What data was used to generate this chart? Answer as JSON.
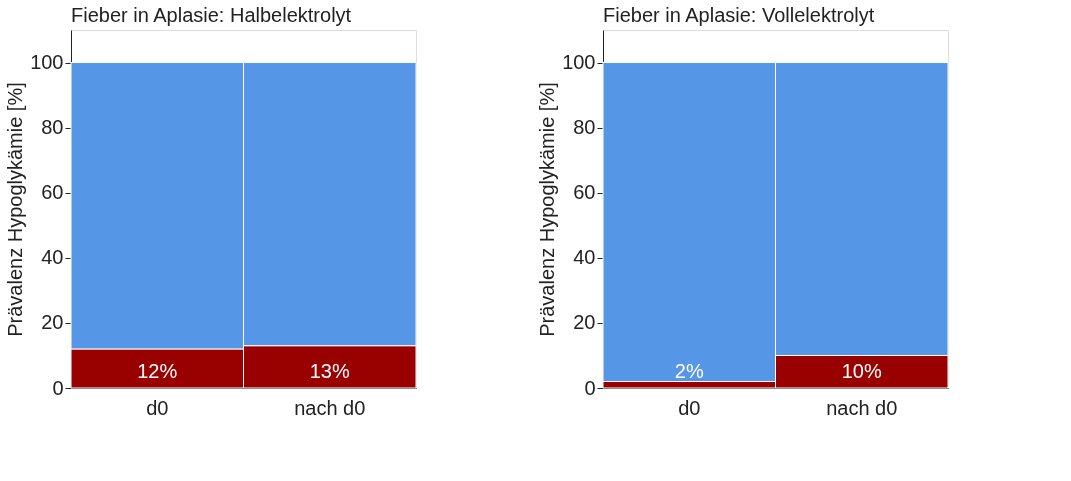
{
  "chart_data": [
    {
      "type": "bar",
      "title": "Fieber in Aplasie: Halbelektrolyt",
      "ylabel": "Prävalenz Hypoglykämie [%]",
      "categories": [
        "d0",
        "nach d0"
      ],
      "stacked": true,
      "ylim": [
        0,
        110
      ],
      "yticks": [
        0,
        20,
        40,
        60,
        80,
        100
      ],
      "series": [
        {
          "color": "#990000",
          "values": [
            12,
            13
          ],
          "value_labels": [
            "12%",
            "13%"
          ]
        },
        {
          "color": "#5596e6",
          "values": [
            88,
            87
          ]
        }
      ]
    },
    {
      "type": "bar",
      "title": "Fieber in Aplasie: Vollelektrolyt",
      "ylabel": "Prävalenz Hypoglykämie [%]",
      "categories": [
        "d0",
        "nach d0"
      ],
      "stacked": true,
      "ylim": [
        0,
        110
      ],
      "yticks": [
        0,
        20,
        40,
        60,
        80,
        100
      ],
      "series": [
        {
          "color": "#990000",
          "values": [
            2,
            10
          ],
          "value_labels": [
            "2%",
            "10%"
          ]
        },
        {
          "color": "#5596e6",
          "values": [
            98,
            90
          ]
        }
      ]
    }
  ]
}
